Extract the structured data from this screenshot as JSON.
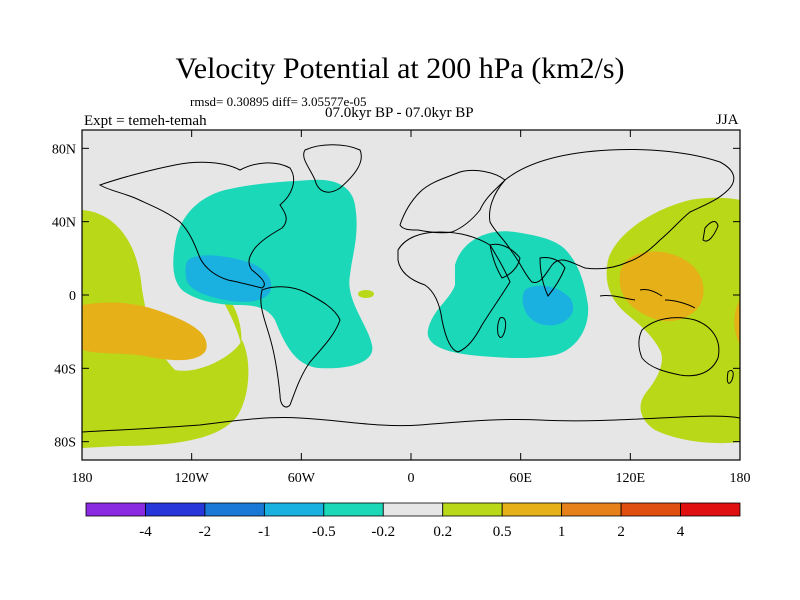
{
  "title": "Velocity Potential at 200 hPa (km2/s)",
  "stats": "rmsd= 0.30895 diff= 3.05577e-05",
  "expt": "Expt = temeh-temah",
  "period": "07.0kyr BP - 07.0kyr BP",
  "season": "JJA",
  "map": {
    "lat_ticks": [
      "80N",
      "40N",
      "0",
      "40S",
      "80S"
    ],
    "lat_values": [
      80,
      40,
      0,
      -40,
      -80
    ],
    "lon_ticks": [
      "180",
      "120W",
      "60W",
      "0",
      "60E",
      "120E",
      "180"
    ],
    "lon_values": [
      -180,
      -120,
      -60,
      0,
      60,
      120,
      180
    ],
    "lat_range": [
      -90,
      90
    ],
    "lon_range": [
      -180,
      180
    ]
  },
  "colorbar": {
    "labels": [
      "-4",
      "-2",
      "-1",
      "-0.5",
      "-0.2",
      "0.2",
      "0.5",
      "1",
      "2",
      "4"
    ],
    "colors": [
      "#8a2be2",
      "#2636d8",
      "#1a78d6",
      "#1ab0e0",
      "#1ad8b8",
      "#e6e6e6",
      "#b8d818",
      "#e6b018",
      "#e68018",
      "#e04e10",
      "#e01010"
    ]
  },
  "colors": {
    "neutral": "#e6e6e6",
    "neg_weak": "#1ad8b8",
    "neg_mid": "#1ab0e0",
    "pos_weak": "#b8d818",
    "pos_mid": "#e6b018"
  }
}
